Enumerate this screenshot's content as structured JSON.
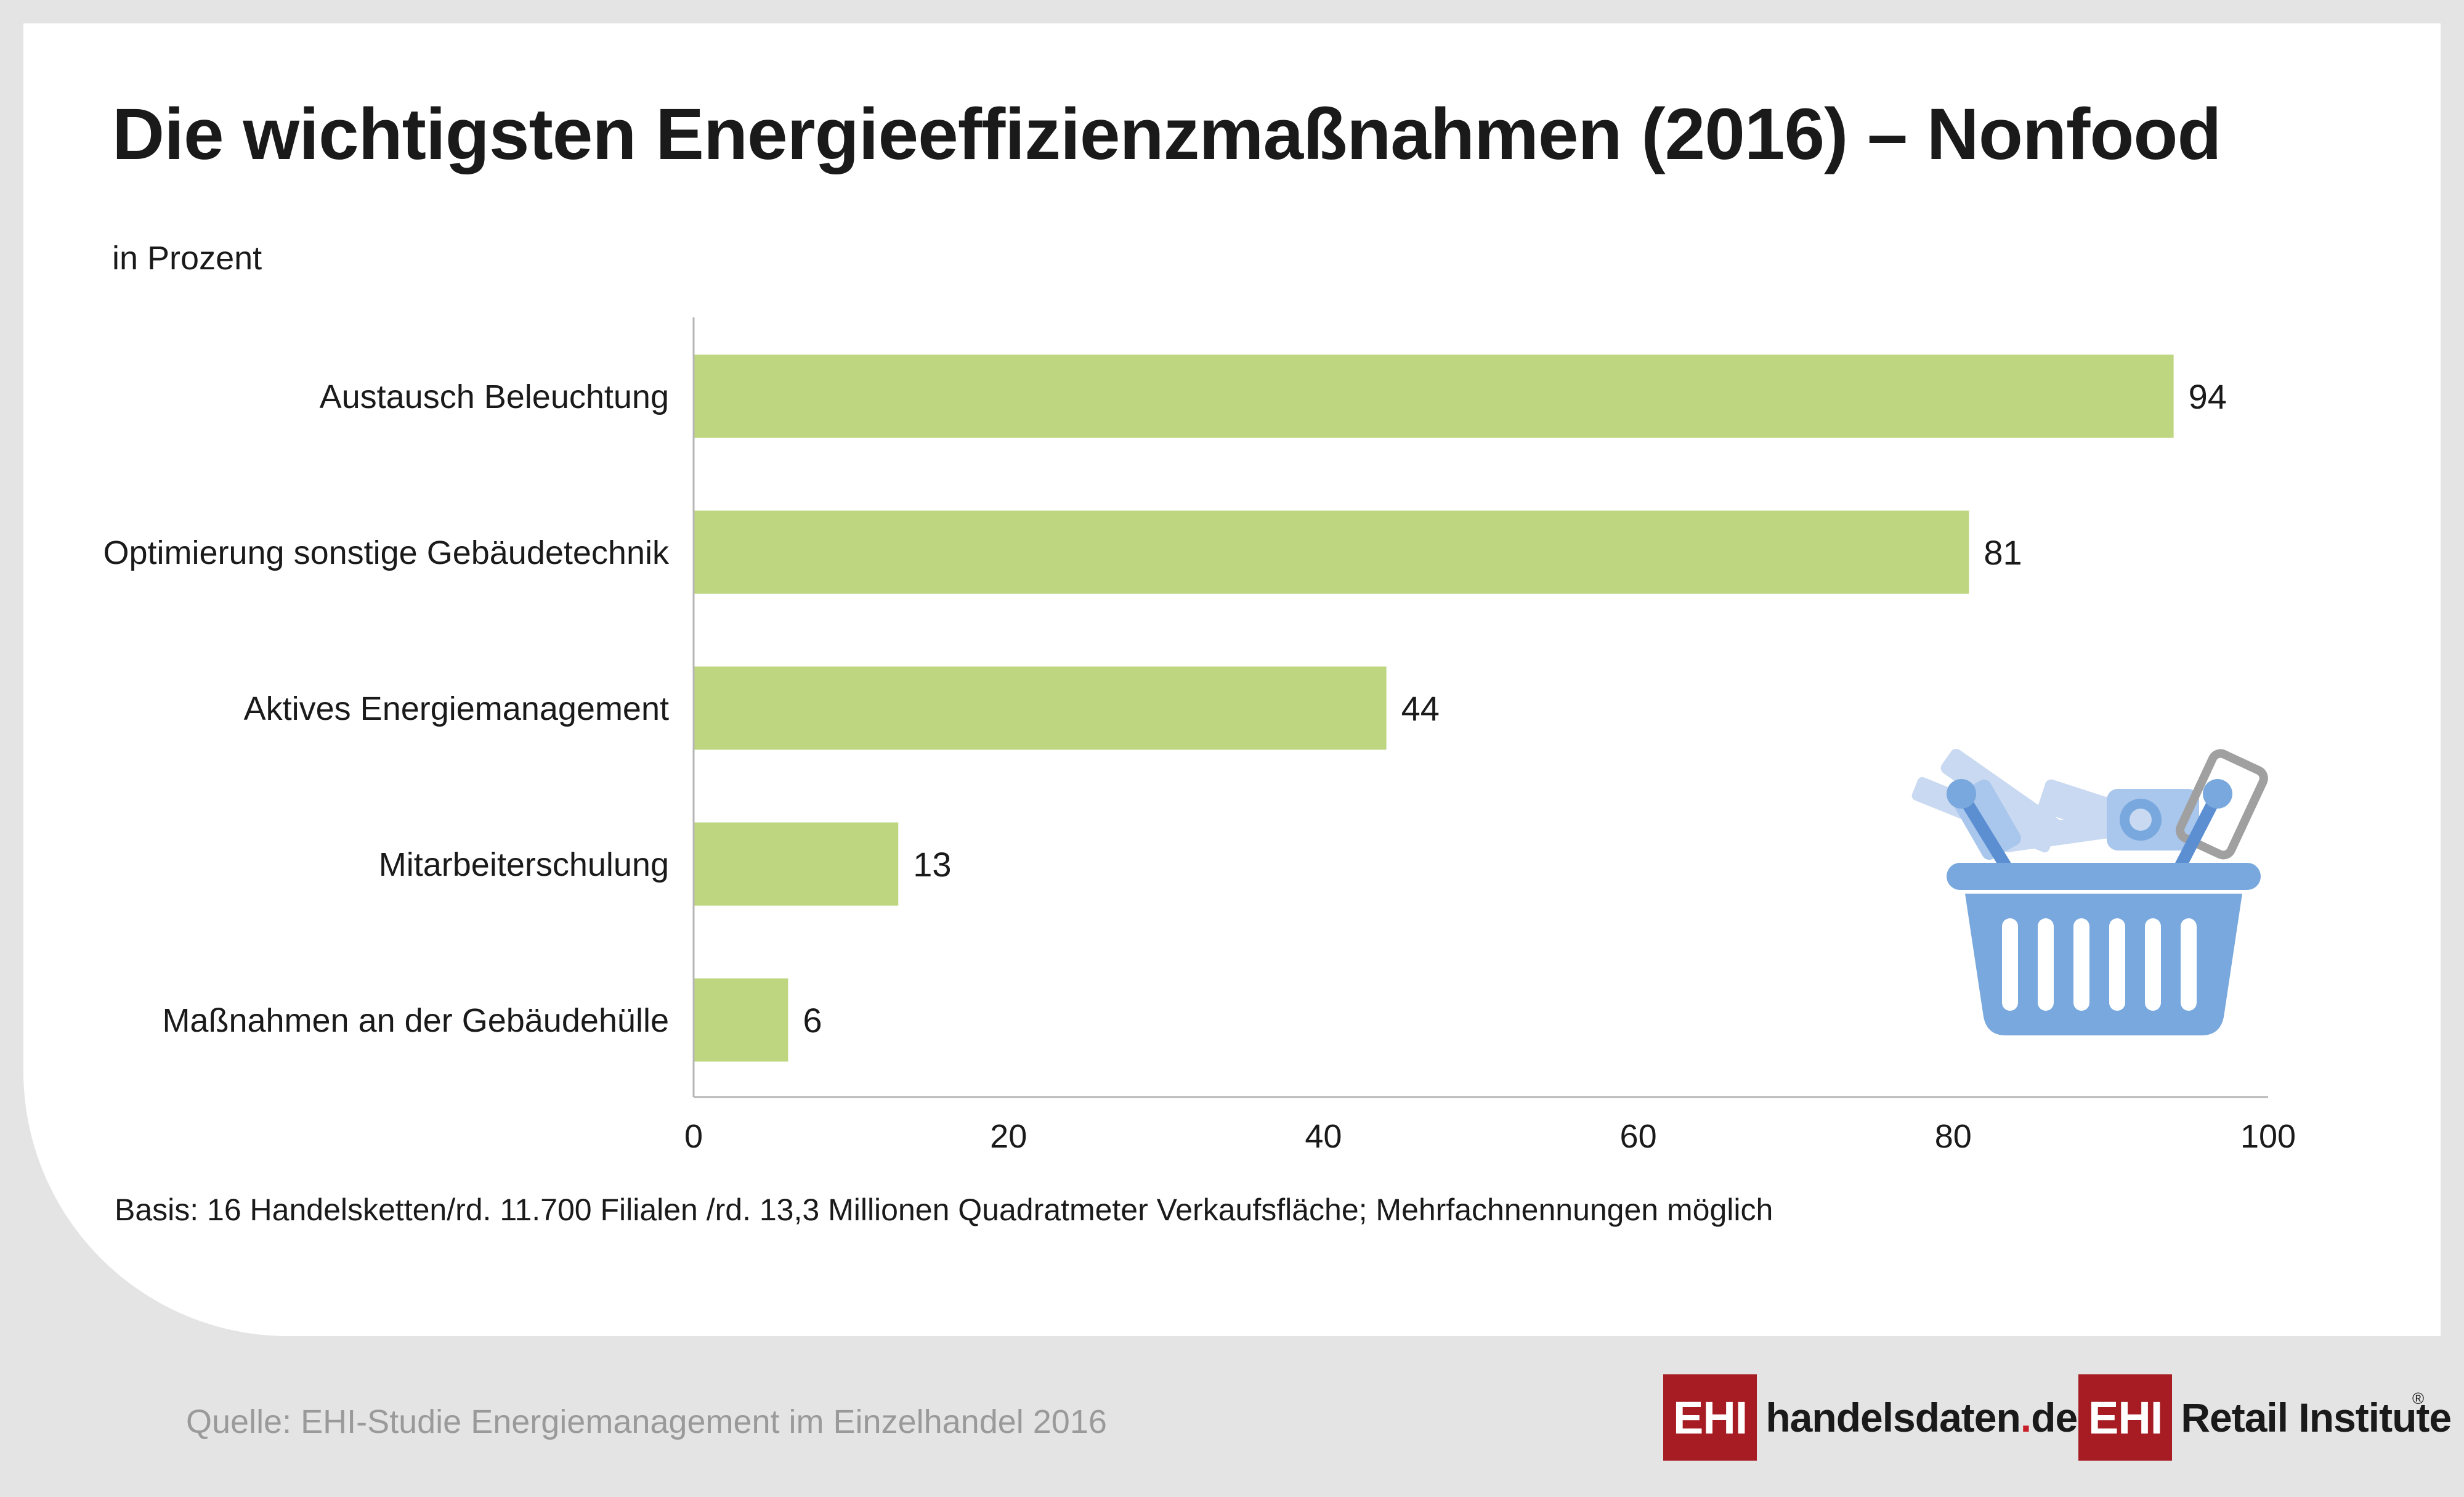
{
  "title": "Die wichtigsten Energieeffizienzmaßnahmen (2016) – Nonfood",
  "unit_label": "in Prozent",
  "basis_note": "Basis: 16 Handelsketten/rd. 11.700 Filialen /rd. 13,3 Millionen Quadratmeter Verkaufsfläche; Mehrfachnennungen möglich",
  "source_note": "Quelle: EHI-Studie Energiemanagement im Einzelhandel 2016",
  "logos": {
    "logo1_box": "EHI",
    "logo1_name": "handelsdaten",
    "logo1_dot": ".",
    "logo1_tld": "de",
    "logo2_box": "EHI",
    "logo2_name": "Retail Institute",
    "logo2_reg": "®"
  },
  "colors": {
    "bar": "#bed680",
    "axis": "#b5b5b5",
    "brand_red": "#a61c22",
    "basket_blue": "#78a8dd"
  },
  "basket_icon": "shopping-basket-icon",
  "chart_data": {
    "type": "bar",
    "orientation": "horizontal",
    "categories": [
      "Austausch Beleuchtung",
      "Optimierung sonstige Gebäudetechnik",
      "Aktives Energiemanagement",
      "Mitarbeiterschulung",
      "Maßnahmen an der Gebäudehülle"
    ],
    "values": [
      94,
      81,
      44,
      13,
      6
    ],
    "data_labels": [
      "94",
      "81",
      "44",
      "13",
      "6"
    ],
    "xlim": [
      0,
      100
    ],
    "xticks": [
      0,
      20,
      40,
      60,
      80,
      100
    ],
    "title": "Die wichtigsten Energieeffizienzmaßnahmen (2016) – Nonfood",
    "xlabel": "",
    "ylabel": "",
    "grid": false,
    "legend": "none"
  }
}
